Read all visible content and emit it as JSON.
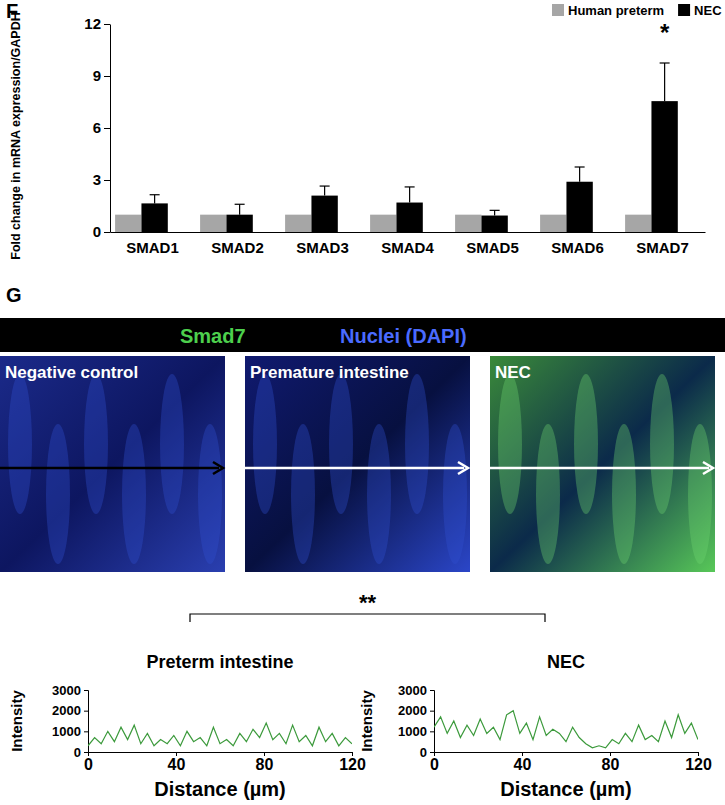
{
  "chart_data": [
    {
      "type": "bar",
      "y_label": "Fold change in mRNA expression/GAPDH",
      "categories": [
        "SMAD1",
        "SMAD2",
        "SMAD3",
        "SMAD4",
        "SMAD5",
        "SMAD6",
        "SMAD7"
      ],
      "series": [
        {
          "name": "Human preterm",
          "color": "#a6a6a6",
          "values": [
            1,
            1,
            1,
            1,
            1,
            1,
            1
          ]
        },
        {
          "name": "NEC",
          "color": "#000000",
          "values": [
            1.65,
            1.0,
            2.1,
            1.7,
            0.95,
            2.9,
            7.55
          ],
          "errors": [
            0.5,
            0.6,
            0.55,
            0.9,
            0.3,
            0.85,
            2.2
          ]
        }
      ],
      "ylim": [
        0,
        12
      ],
      "yticks": [
        0,
        3,
        6,
        9,
        12
      ],
      "legend": "top-right",
      "annotations": [
        {
          "text": "*",
          "category": "SMAD7"
        }
      ]
    },
    {
      "type": "line",
      "title": "Preterm intestine",
      "x_label": "Distance (µm)",
      "y_label": "Intensity",
      "color": "#3c9a3c",
      "x": [
        0,
        3,
        6,
        9,
        12,
        15,
        18,
        21,
        24,
        27,
        30,
        33,
        36,
        39,
        42,
        45,
        48,
        51,
        54,
        57,
        60,
        63,
        66,
        69,
        72,
        75,
        78,
        81,
        84,
        87,
        90,
        93,
        96,
        99,
        102,
        105,
        108,
        111,
        114,
        117,
        120
      ],
      "values": [
        300,
        700,
        400,
        1000,
        500,
        1200,
        600,
        1300,
        400,
        900,
        300,
        600,
        400,
        800,
        300,
        1000,
        500,
        700,
        300,
        1200,
        400,
        600,
        300,
        900,
        500,
        1100,
        700,
        1400,
        600,
        900,
        400,
        1300,
        500,
        800,
        300,
        1200,
        500,
        900,
        300,
        700,
        400
      ],
      "xlim": [
        0,
        120
      ],
      "xticks": [
        0,
        40,
        80,
        120
      ],
      "ylim": [
        0,
        3000
      ],
      "yticks": [
        0,
        1000,
        2000,
        3000
      ]
    },
    {
      "type": "line",
      "title": "NEC",
      "x_label": "Distance (µm)",
      "y_label": "Intensity",
      "color": "#3c9a3c",
      "x": [
        0,
        3,
        6,
        9,
        12,
        15,
        18,
        21,
        24,
        27,
        30,
        33,
        36,
        39,
        42,
        45,
        48,
        51,
        54,
        57,
        60,
        63,
        66,
        69,
        72,
        75,
        78,
        81,
        84,
        87,
        90,
        93,
        96,
        99,
        102,
        105,
        108,
        111,
        114,
        117,
        120
      ],
      "values": [
        1200,
        1700,
        900,
        1500,
        700,
        1300,
        800,
        1600,
        900,
        1200,
        600,
        1800,
        2000,
        900,
        1400,
        600,
        1700,
        800,
        1100,
        900,
        500,
        1200,
        700,
        400,
        200,
        300,
        200,
        600,
        400,
        900,
        500,
        1300,
        600,
        800,
        500,
        1500,
        700,
        1800,
        900,
        1400,
        600
      ],
      "xlim": [
        0,
        120
      ],
      "xticks": [
        0,
        40,
        80,
        120
      ],
      "ylim": [
        0,
        3000
      ],
      "yticks": [
        0,
        1000,
        2000,
        3000
      ]
    }
  ],
  "figure": {
    "panel_labels": [
      "F",
      "G"
    ],
    "stain_header": [
      {
        "text": "Smad7",
        "color": "#4dd04d"
      },
      {
        "text": "Nuclei (DAPI)",
        "color": "#4a6bff"
      }
    ],
    "images": [
      "Negative control",
      "Premature intestine",
      "NEC"
    ],
    "comparison": "**"
  }
}
